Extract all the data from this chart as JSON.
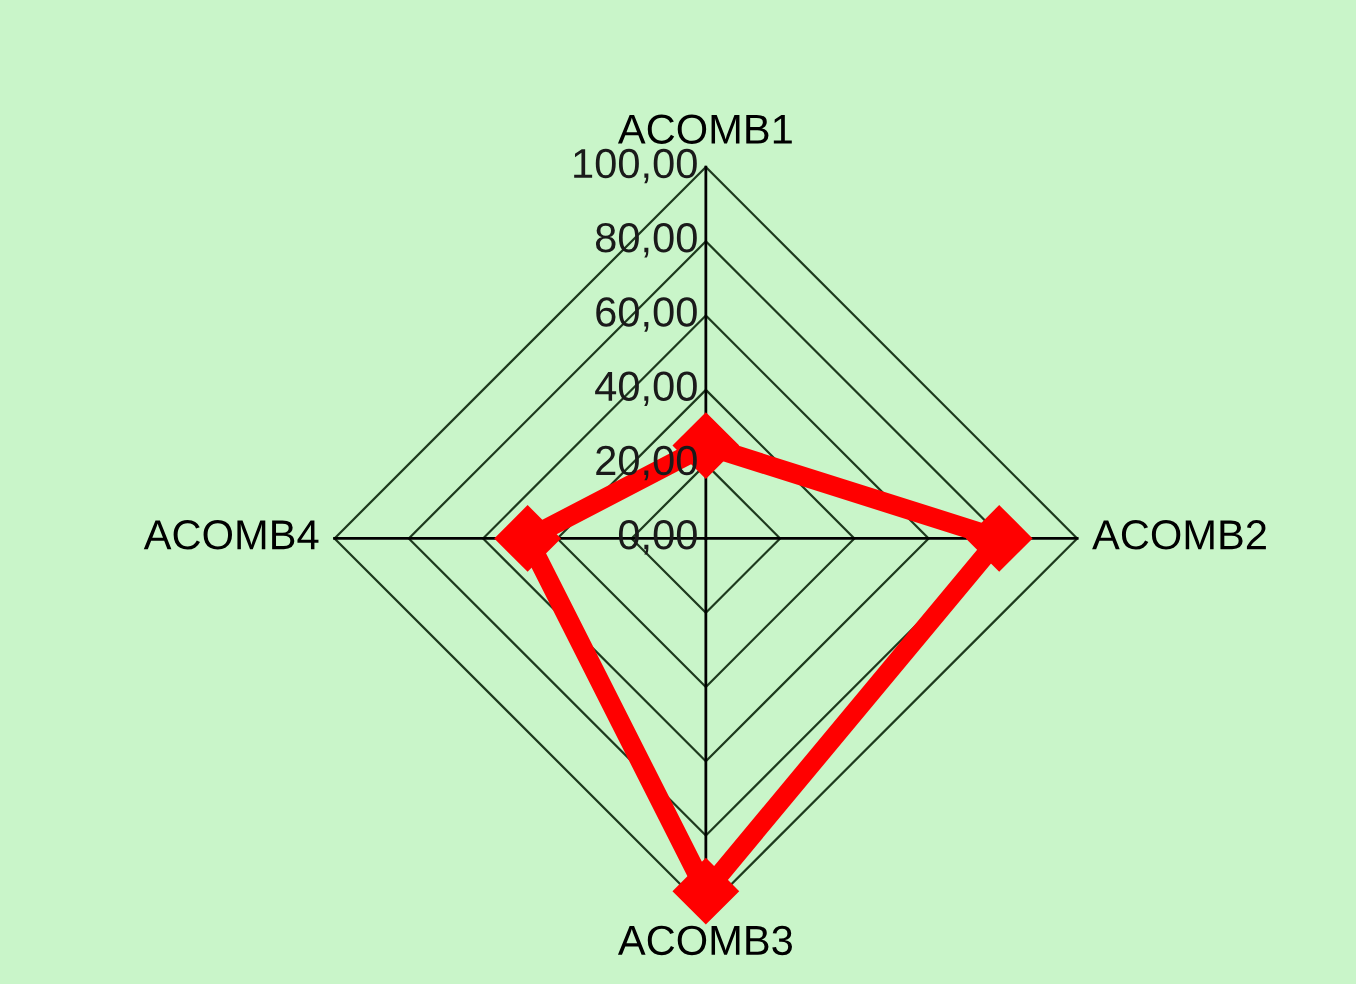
{
  "chart_data": {
    "type": "radar",
    "categories": [
      "ACOMB1",
      "ACOMB2",
      "ACOMB3",
      "ACOMB4"
    ],
    "series": [
      {
        "color": "#ff0000",
        "values": [
          25,
          79,
          95,
          48
        ]
      }
    ],
    "ylim": [
      0,
      100
    ],
    "yticks": [
      {
        "value": 0,
        "label": "0,00"
      },
      {
        "value": 20,
        "label": "20,00"
      },
      {
        "value": 40,
        "label": "40,00"
      },
      {
        "value": 60,
        "label": "60,00"
      },
      {
        "value": 80,
        "label": "80,00"
      },
      {
        "value": 100,
        "label": "100,00"
      }
    ],
    "grid": true,
    "marker": "diamond",
    "line_style": "solid"
  }
}
